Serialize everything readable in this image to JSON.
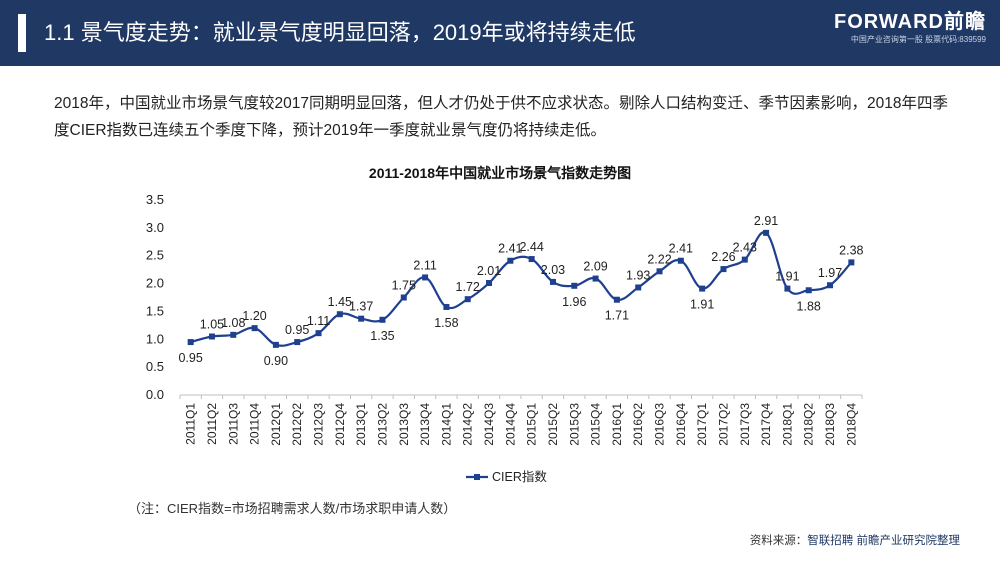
{
  "header": {
    "title": "1.1 景气度走势：就业景气度明显回落，2019年或将持续走低",
    "logo_text": "FORWARD前瞻",
    "logo_tagline": "中国产业咨询第一股 股票代码:839599"
  },
  "intro_text": "2018年，中国就业市场景气度较2017同期明显回落，但人才仍处于供不应求状态。剔除人口结构变迁、季节因素影响，2018年四季度CIER指数已连续五个季度下降，预计2019年一季度就业景气度仍将持续走低。",
  "note": "（注：CIER指数=市场招聘需求人数/市场求职申请人数）",
  "source": {
    "label": "资料来源：",
    "text": "智联招聘 前瞻产业研究院整理"
  },
  "colors": {
    "header_bg": "#1f3864",
    "series": "#1f3f8f",
    "axis": "#bfbfbf"
  },
  "chart_data": {
    "type": "line",
    "title": "2011-2018年中国就业市场景气指数走势图",
    "xlabel": "",
    "ylabel": "",
    "ylim": [
      0,
      3.5
    ],
    "yticks": [
      "0.0",
      "0.5",
      "1.0",
      "1.5",
      "2.0",
      "2.5",
      "3.0",
      "3.5"
    ],
    "grid": false,
    "legend": "bottom",
    "categories": [
      "2011Q1",
      "2011Q2",
      "2011Q3",
      "2011Q4",
      "2012Q1",
      "2012Q2",
      "2012Q3",
      "2012Q4",
      "2013Q1",
      "2013Q2",
      "2013Q3",
      "2013Q4",
      "2014Q1",
      "2014Q2",
      "2014Q3",
      "2014Q4",
      "2015Q1",
      "2015Q2",
      "2015Q3",
      "2015Q4",
      "2016Q1",
      "2016Q2",
      "2016Q3",
      "2016Q4",
      "2017Q1",
      "2017Q2",
      "2017Q3",
      "2017Q4",
      "2018Q1",
      "2018Q2",
      "2018Q3",
      "2018Q4"
    ],
    "series": [
      {
        "name": "CIER指数",
        "values": [
          0.95,
          1.05,
          1.08,
          1.2,
          0.9,
          0.95,
          1.11,
          1.45,
          1.37,
          1.35,
          1.75,
          2.11,
          1.58,
          1.72,
          2.01,
          2.41,
          2.44,
          2.03,
          1.96,
          2.09,
          1.71,
          1.93,
          2.22,
          2.41,
          1.91,
          2.26,
          2.43,
          2.91,
          1.91,
          1.88,
          1.97,
          2.38
        ],
        "labels": [
          "0.95",
          "1.05",
          "1.08",
          "1.20",
          "0.90",
          "0.95",
          "1.11",
          "1.45",
          "1.37",
          "1.35",
          "1.75",
          "2.11",
          "1.58",
          "1.72",
          "2.01",
          "2.41",
          "2.44",
          "2.03",
          "1.96",
          "2.09",
          "1.71",
          "1.93",
          "2.22",
          "2.41",
          "1.91",
          "2.26",
          "2.43",
          "2.91",
          "1.91",
          "1.88",
          "1.97",
          "2.38"
        ]
      }
    ]
  }
}
